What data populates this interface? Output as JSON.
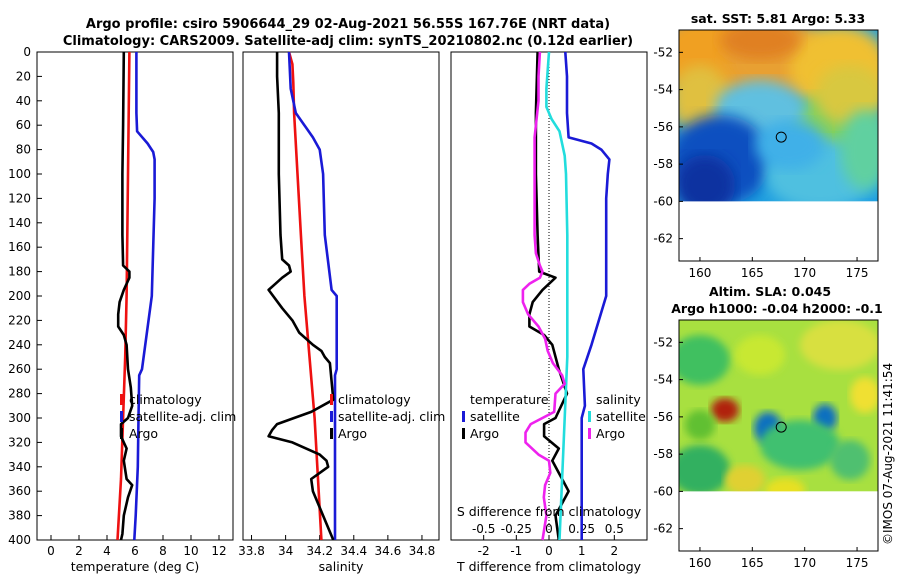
{
  "title": {
    "line1": "Argo profile: csiro 5906644_29 02-Aug-2021 56.55S 167.76E (NRT data)",
    "line2": "Climatology: CARS2009. Satellite-adj clim: synTS_20210802.nc (0.12d earlier)"
  },
  "stamp": "©IMOS 07-Aug-2021 11:41:54",
  "colors": {
    "climatology": "#ee1111",
    "satellite": "#1a1ad6",
    "argo": "#000000",
    "diff_temp_sat": "#1a1ad6",
    "diff_sal_sat": "#22dddd",
    "diff_sal_argo": "#ee22ee",
    "axis": "#000000",
    "grid": "#999999"
  },
  "chart_data": [
    {
      "type": "line",
      "name": "temperature-profile",
      "xlabel": "temperature (deg C)",
      "ylabel": "",
      "xlim": [
        -1,
        13
      ],
      "ylim": [
        0,
        400
      ],
      "xticks": [
        "0",
        "2",
        "4",
        "6",
        "8",
        "10",
        "12"
      ],
      "yticks": [
        "0",
        "20",
        "40",
        "60",
        "80",
        "100",
        "120",
        "140",
        "160",
        "180",
        "200",
        "220",
        "240",
        "260",
        "280",
        "300",
        "320",
        "340",
        "360",
        "380",
        "400"
      ],
      "legend": [
        "climatology",
        "satellite-adj. clim",
        "Argo"
      ],
      "series": [
        {
          "name": "climatology",
          "depth": [
            0,
            50,
            100,
            150,
            200,
            250,
            300,
            350,
            400
          ],
          "values": [
            5.6,
            5.55,
            5.5,
            5.45,
            5.4,
            5.3,
            5.15,
            5.0,
            4.75
          ]
        },
        {
          "name": "satellite-adj. clim",
          "depth": [
            0,
            20,
            50,
            65,
            75,
            82,
            88,
            100,
            120,
            200,
            260,
            265,
            300,
            340,
            380,
            400
          ],
          "values": [
            6.1,
            6.1,
            6.1,
            6.15,
            6.9,
            7.3,
            7.4,
            7.4,
            7.4,
            7.2,
            6.5,
            6.3,
            6.25,
            6.2,
            6.05,
            5.95
          ]
        },
        {
          "name": "Argo",
          "depth": [
            0,
            60,
            100,
            150,
            175,
            180,
            185,
            195,
            205,
            215,
            225,
            232,
            240,
            260,
            275,
            290,
            300,
            305,
            315,
            325,
            335,
            350,
            355,
            365,
            380,
            395,
            400
          ],
          "values": [
            5.2,
            5.15,
            5.1,
            5.1,
            5.15,
            5.6,
            5.6,
            5.2,
            4.9,
            4.8,
            4.8,
            5.2,
            5.4,
            5.5,
            5.7,
            5.8,
            5.5,
            5.0,
            5.0,
            5.4,
            5.2,
            5.4,
            5.8,
            5.5,
            5.2,
            5.1,
            5.0
          ]
        }
      ]
    },
    {
      "type": "line",
      "name": "salinity-profile",
      "xlabel": "salinity",
      "ylabel": "",
      "xlim": [
        33.75,
        34.9
      ],
      "ylim": [
        0,
        400
      ],
      "xticks": [
        "33.8",
        "34",
        "34.2",
        "34.4",
        "34.6",
        "34.8"
      ],
      "legend": [
        "climatology",
        "satellite-adj. clim",
        "Argo"
      ],
      "series": [
        {
          "name": "climatology",
          "depth": [
            0,
            10,
            25,
            50,
            100,
            150,
            200,
            250,
            300,
            350,
            400
          ],
          "values": [
            34.02,
            34.04,
            34.045,
            34.05,
            34.07,
            34.09,
            34.11,
            34.14,
            34.17,
            34.19,
            34.21
          ]
        },
        {
          "name": "satellite-adj. clim",
          "depth": [
            0,
            30,
            50,
            60,
            70,
            80,
            100,
            150,
            195,
            200,
            205,
            260,
            265,
            300,
            400
          ],
          "values": [
            34.02,
            34.03,
            34.06,
            34.11,
            34.16,
            34.2,
            34.22,
            34.23,
            34.27,
            34.3,
            34.3,
            34.3,
            34.29,
            34.29,
            34.29
          ]
        },
        {
          "name": "Argo",
          "depth": [
            0,
            20,
            50,
            100,
            150,
            170,
            175,
            180,
            185,
            190,
            195,
            210,
            220,
            230,
            240,
            245,
            250,
            255,
            270,
            285,
            295,
            300,
            305,
            310,
            315,
            320,
            330,
            335,
            340,
            345,
            350,
            360,
            380,
            400
          ],
          "values": [
            33.95,
            33.95,
            33.96,
            33.96,
            33.97,
            33.98,
            34.02,
            34.03,
            33.98,
            33.94,
            33.9,
            33.98,
            34.04,
            34.08,
            34.16,
            34.21,
            34.23,
            34.26,
            34.27,
            34.28,
            34.15,
            34.05,
            33.95,
            33.92,
            33.9,
            34.04,
            34.2,
            34.24,
            34.25,
            34.2,
            34.15,
            34.16,
            34.22,
            34.28
          ]
        }
      ]
    },
    {
      "type": "line",
      "name": "difference-profile",
      "xlabel": "T difference from climatology",
      "xlabel_top": "S difference from climatology",
      "xlim": [
        -3,
        3
      ],
      "ylim": [
        0,
        400
      ],
      "xticks": [
        "-2",
        "-1",
        "0",
        "1",
        "2"
      ],
      "xticks_top": [
        "-0.5",
        "-0.25",
        "0",
        "0.25",
        "0.5"
      ],
      "xticks_top_values": [
        -0.5,
        -0.25,
        0,
        0.25,
        0.5
      ],
      "legend_temperature": {
        "title": "temperature",
        "items": [
          "satellite",
          "Argo"
        ]
      },
      "legend_salinity": {
        "title": "salinity",
        "items": [
          "satellite",
          "Argo"
        ]
      },
      "series": [
        {
          "name": "temperature satellite",
          "depth": [
            0,
            20,
            50,
            70,
            75,
            80,
            88,
            100,
            120,
            200,
            240,
            260,
            290,
            300,
            350,
            400
          ],
          "values": [
            0.5,
            0.55,
            0.55,
            0.6,
            1.3,
            1.6,
            1.85,
            1.8,
            1.75,
            1.75,
            1.3,
            1.05,
            1.1,
            1.0,
            1.0,
            1.0
          ]
        },
        {
          "name": "temperature Argo",
          "depth": [
            0,
            50,
            100,
            150,
            180,
            185,
            195,
            205,
            215,
            225,
            232,
            240,
            260,
            280,
            300,
            305,
            315,
            325,
            335,
            350,
            360,
            380,
            400
          ],
          "values": [
            -0.35,
            -0.4,
            -0.4,
            -0.35,
            -0.3,
            0.2,
            -0.2,
            -0.5,
            -0.6,
            -0.6,
            -0.15,
            0.1,
            0.3,
            0.55,
            0.2,
            -0.15,
            -0.15,
            0.3,
            0.1,
            0.4,
            0.6,
            0.2,
            0.3
          ]
        },
        {
          "name": "salinity satellite",
          "depth": [
            0,
            30,
            45,
            55,
            65,
            75,
            85,
            100,
            150,
            200,
            250,
            300,
            350,
            400
          ],
          "values": [
            0.0,
            -0.02,
            -0.02,
            0.02,
            0.08,
            0.1,
            0.12,
            0.13,
            0.14,
            0.14,
            0.14,
            0.12,
            0.1,
            0.08
          ]
        },
        {
          "name": "salinity Argo",
          "depth": [
            0,
            20,
            40,
            50,
            60,
            70,
            100,
            150,
            165,
            175,
            180,
            185,
            190,
            195,
            205,
            215,
            225,
            235,
            245,
            255,
            265,
            272,
            280,
            295,
            305,
            312,
            320,
            330,
            335,
            345,
            355,
            365,
            380,
            400
          ],
          "values": [
            -0.07,
            -0.08,
            -0.08,
            -0.09,
            -0.1,
            -0.11,
            -0.11,
            -0.11,
            -0.1,
            -0.07,
            -0.05,
            -0.07,
            -0.15,
            -0.2,
            -0.2,
            -0.16,
            -0.08,
            -0.03,
            -0.01,
            0.03,
            0.1,
            0.12,
            0.05,
            0.04,
            -0.14,
            -0.18,
            -0.18,
            -0.08,
            0.0,
            0.01,
            -0.03,
            -0.04,
            -0.02,
            -0.05
          ]
        }
      ]
    }
  ],
  "maps": {
    "sst": {
      "title": "sat. SST: 5.81 Argo: 5.33",
      "xticks": [
        "160",
        "165",
        "170",
        "175"
      ],
      "yticks": [
        "-52",
        "-54",
        "-56",
        "-58",
        "-60",
        "-62"
      ],
      "lon_range": [
        158,
        177
      ],
      "lat_range": [
        -63.2,
        -50.8
      ],
      "data_lat_min": -60,
      "marker": {
        "lon": 167.76,
        "lat": -56.55
      }
    },
    "sla": {
      "title_line1": "Altim. SLA: 0.045",
      "title_line2": "Argo h1000: -0.04 h2000: -0.1",
      "xticks": [
        "160",
        "165",
        "170",
        "175"
      ],
      "yticks": [
        "-52",
        "-54",
        "-56",
        "-58",
        "-60",
        "-62"
      ],
      "lon_range": [
        158,
        177
      ],
      "lat_range": [
        -63.2,
        -50.8
      ],
      "data_lat_min": -60,
      "marker": {
        "lon": 167.76,
        "lat": -56.55
      }
    }
  }
}
